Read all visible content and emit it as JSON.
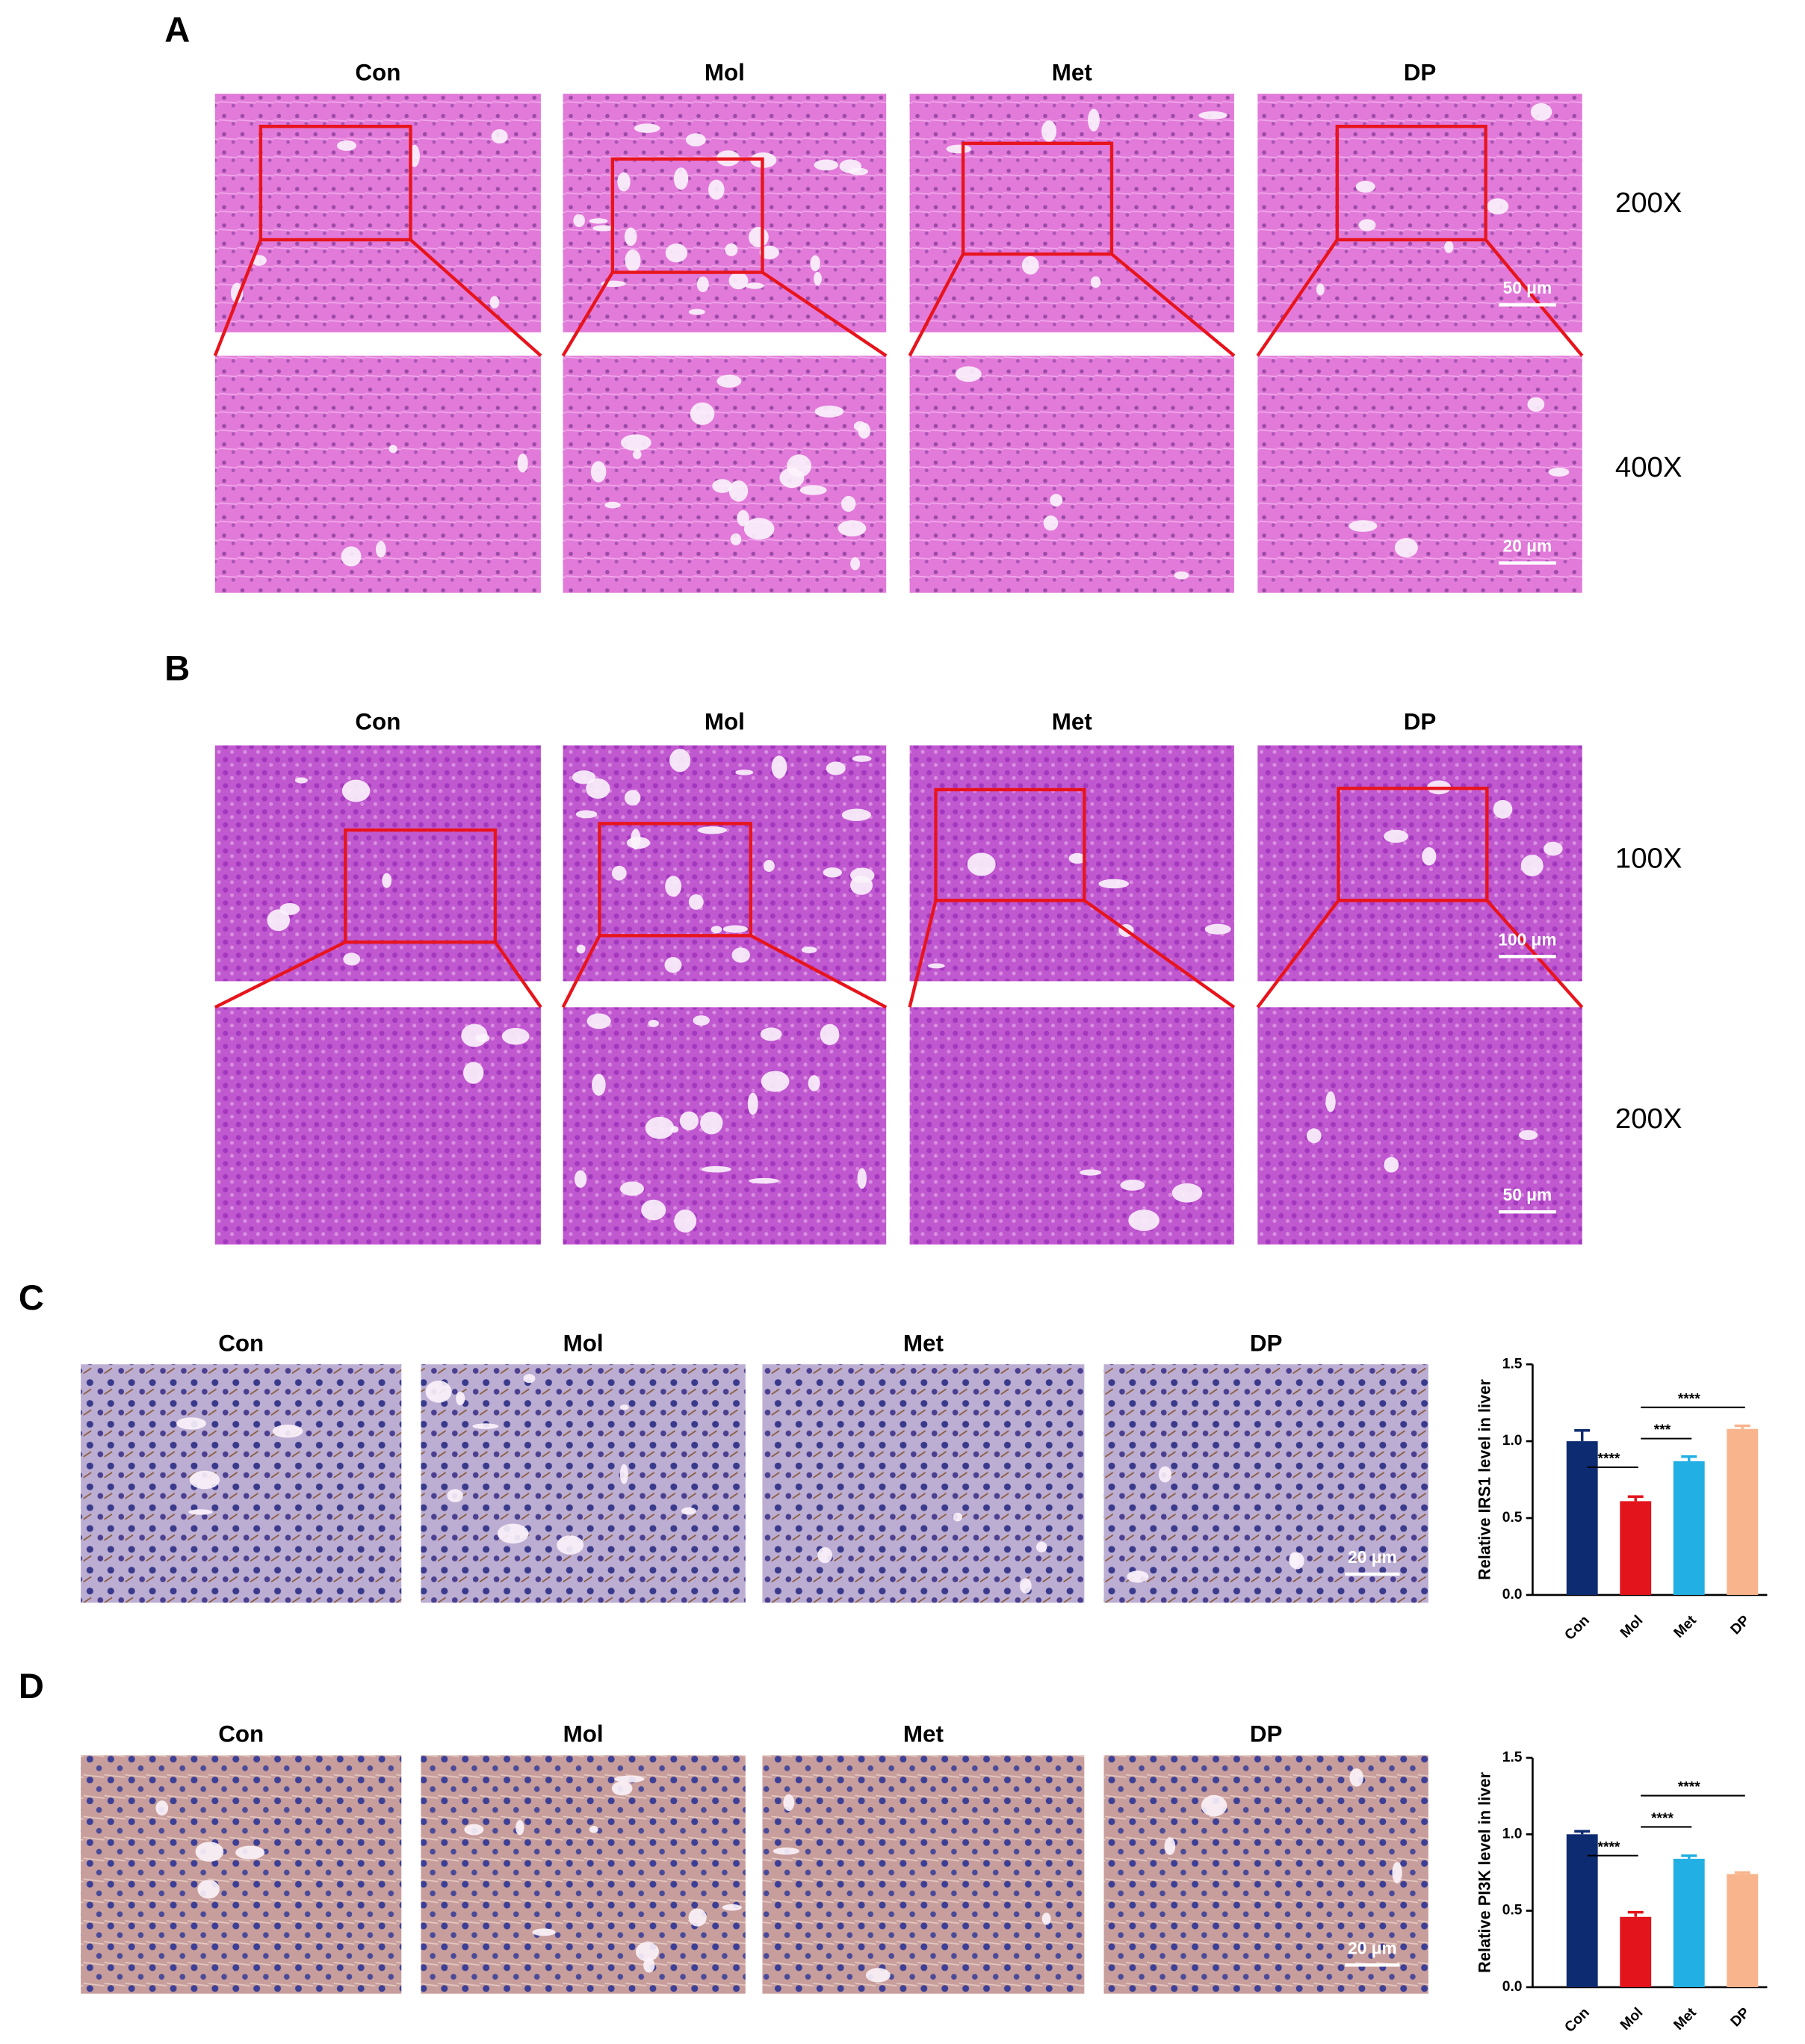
{
  "panels": [
    {
      "label": "A",
      "columns": [
        "Con",
        "Mol",
        "Met",
        "DP"
      ],
      "magnifications": [
        "200X",
        "400X"
      ],
      "scale_bars": [
        "50 μm",
        "20 μm"
      ]
    },
    {
      "label": "B",
      "columns": [
        "Con",
        "Mol",
        "Met",
        "DP"
      ],
      "magnifications": [
        "100X",
        "200X"
      ],
      "scale_bars": [
        "100 μm",
        "50 μm"
      ]
    },
    {
      "label": "C",
      "columns": [
        "Con",
        "Mol",
        "Met",
        "DP"
      ],
      "scale_bars": [
        "20 μm"
      ]
    },
    {
      "label": "D",
      "columns": [
        "Con",
        "Mol",
        "Met",
        "DP"
      ],
      "scale_bars": [
        "20 μm"
      ]
    }
  ],
  "chart_data": [
    {
      "type": "bar",
      "y_label": "Relative IRS1 level in liver",
      "categories": [
        "Con",
        "Mol",
        "Met",
        "DP"
      ],
      "values": [
        1.0,
        0.61,
        0.87,
        1.08
      ],
      "errors": [
        0.07,
        0.03,
        0.03,
        0.02
      ],
      "colors": [
        "#0d2b70",
        "#e3141c",
        "#22b0e4",
        "#f8b48c"
      ],
      "ylim": [
        0,
        1.5
      ],
      "yticks": [
        {
          "value": 0,
          "label": "0.0"
        },
        0.5,
        {
          "value": 1,
          "label": "1.0"
        },
        1.5
      ],
      "annotations": [
        "****",
        "***",
        "****"
      ]
    },
    {
      "type": "bar",
      "y_label": "Relative PI3K level in liver",
      "categories": [
        "Con",
        "Mol",
        "Met",
        "DP"
      ],
      "values": [
        1.0,
        0.46,
        0.84,
        0.74
      ],
      "errors": [
        0.02,
        0.03,
        0.02,
        0.01
      ],
      "colors": [
        "#0d2b70",
        "#e3141c",
        "#22b0e4",
        "#f8b48c"
      ],
      "ylim": [
        0,
        1.5
      ],
      "yticks": [
        {
          "value": 0,
          "label": "0.0"
        },
        0.5,
        {
          "value": 1,
          "label": "1.0"
        },
        1.5
      ],
      "annotations": [
        "****",
        "****",
        "****"
      ]
    }
  ]
}
